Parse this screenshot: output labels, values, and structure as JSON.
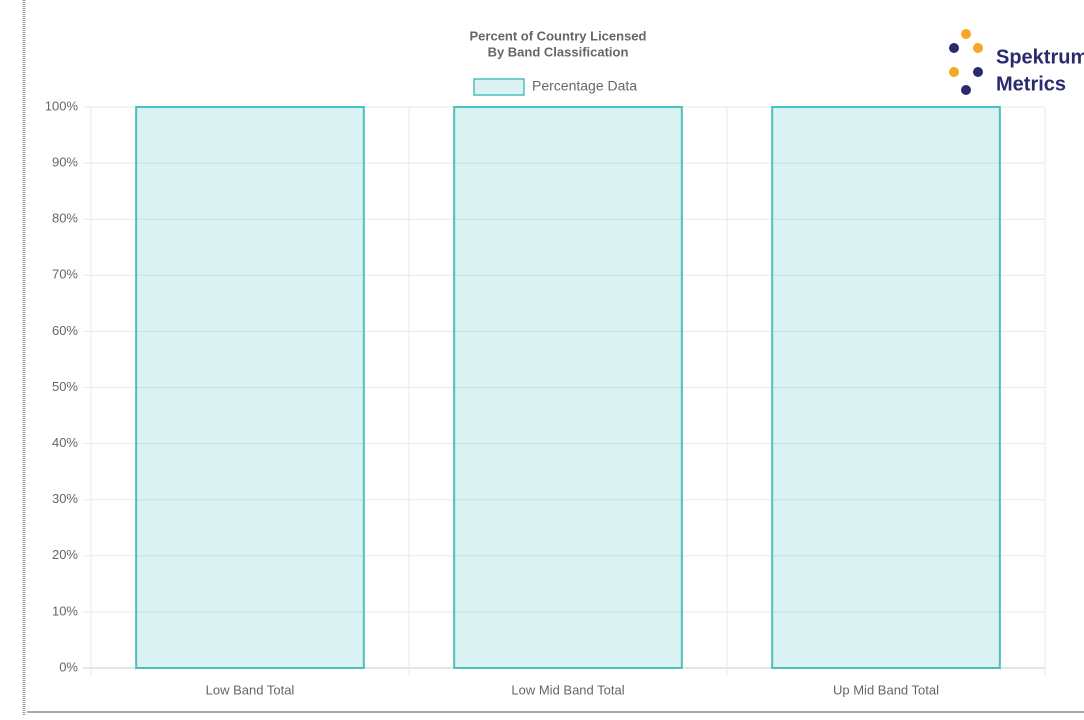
{
  "chart_data": {
    "type": "bar",
    "title": [
      "Percent of Country Licensed",
      "By Band Classification"
    ],
    "categories": [
      "Low Band Total",
      "Low Mid Band Total",
      "Up Mid Band Total"
    ],
    "series": [
      {
        "name": "Percentage Data",
        "color": "#4bc0c0",
        "values": [
          100,
          100,
          100
        ]
      }
    ],
    "ylim": [
      0,
      100
    ],
    "yticks": [
      {
        "value": 0,
        "label": "0%"
      },
      {
        "value": 10,
        "label": "10%"
      },
      {
        "value": 20,
        "label": "20%"
      },
      {
        "value": 30,
        "label": "30%"
      },
      {
        "value": 40,
        "label": "40%"
      },
      {
        "value": 50,
        "label": "50%"
      },
      {
        "value": 60,
        "label": "60%"
      },
      {
        "value": 70,
        "label": "70%"
      },
      {
        "value": 80,
        "label": "80%"
      },
      {
        "value": 90,
        "label": "90%"
      },
      {
        "value": 100,
        "label": "100%"
      }
    ],
    "grid": true,
    "legend": "top"
  },
  "logo": [
    "Spektrum",
    "Metrics"
  ]
}
